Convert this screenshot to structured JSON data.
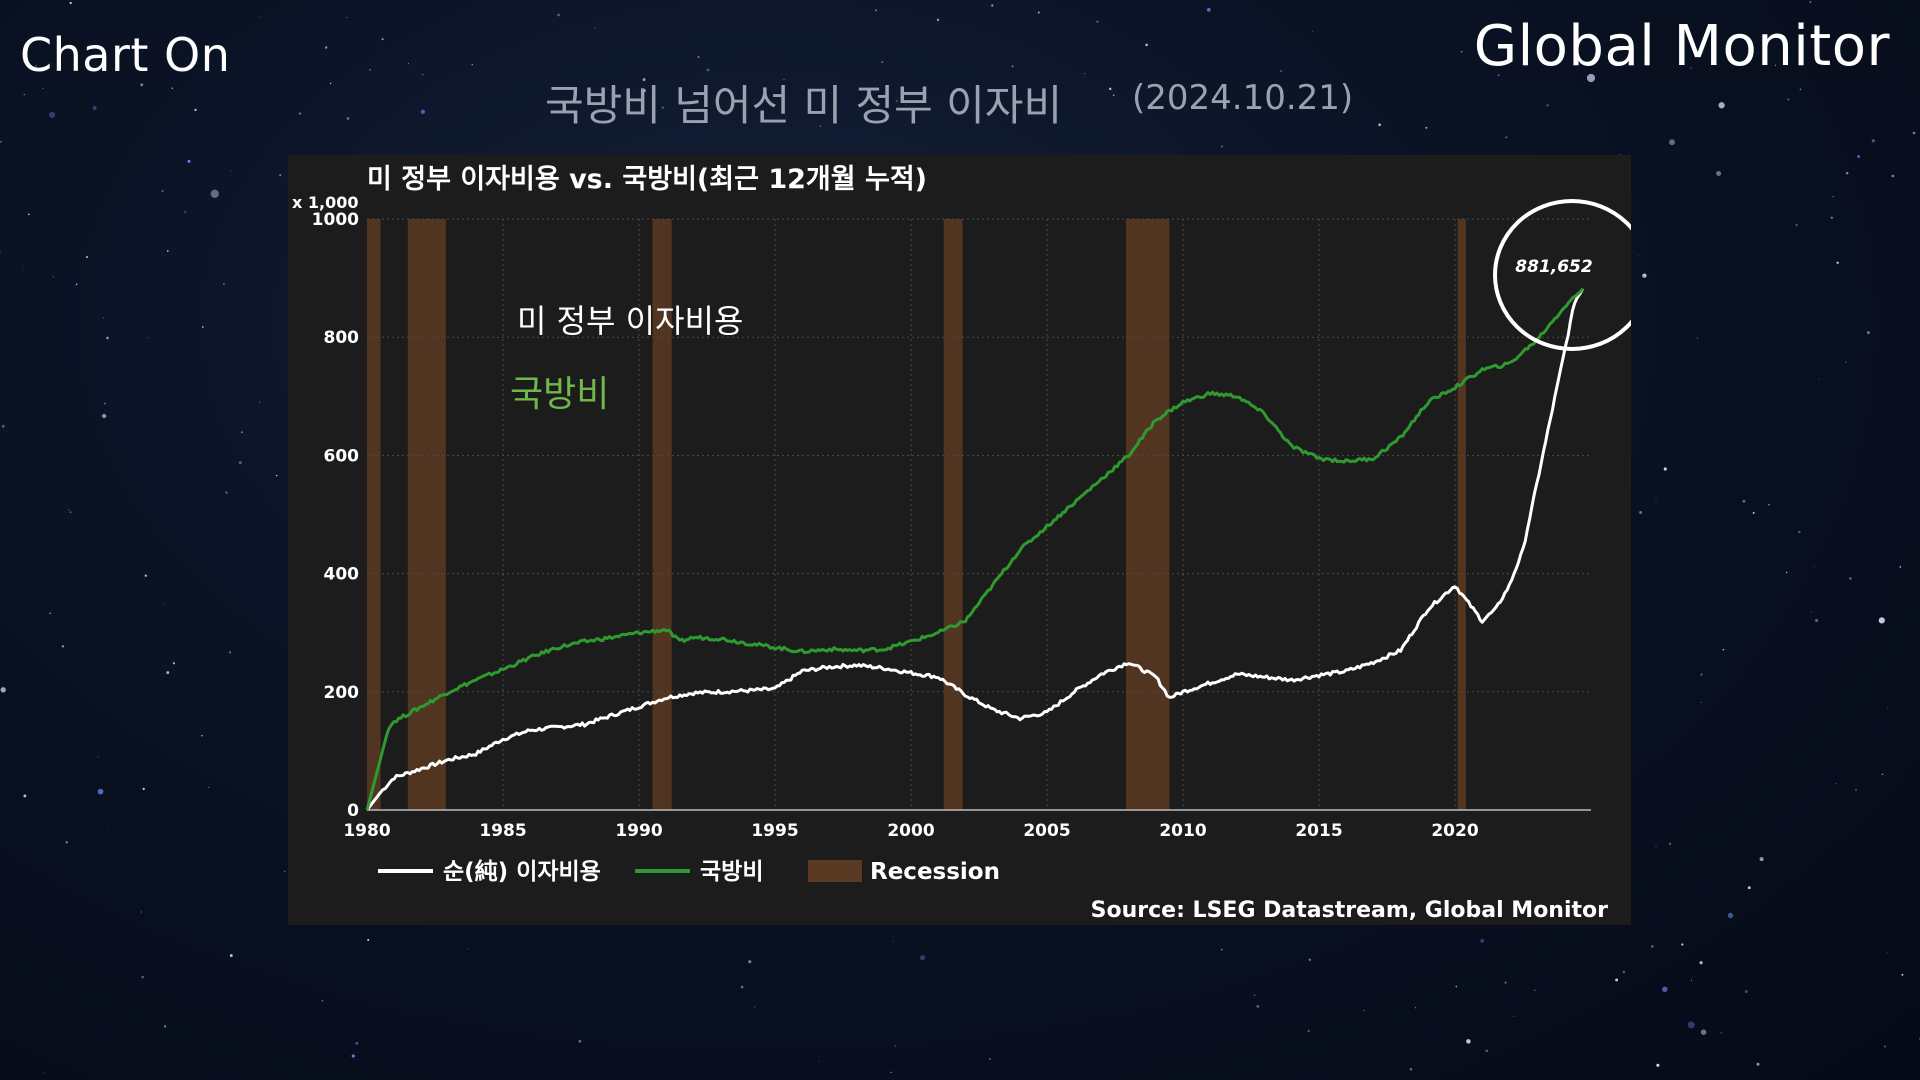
{
  "header": {
    "brand_left": "Chart On",
    "brand_right": "Global Monitor",
    "title": "국방비 넘어선 미 정부 이자비",
    "date": "(2024.10.21)"
  },
  "chart_data": {
    "type": "line",
    "title": "미 정부 이자비용 vs. 국방비(최근 12개월 누적)",
    "y_unit": "x 1,000",
    "xlim": [
      1980,
      2025
    ],
    "ylim": [
      0,
      1000
    ],
    "x_ticks": [
      1980,
      1985,
      1990,
      1995,
      2000,
      2005,
      2010,
      2015,
      2020
    ],
    "y_ticks": [
      0,
      200,
      400,
      600,
      800,
      1000
    ],
    "grid": true,
    "legend_position": "bottom-left",
    "series": [
      {
        "name": "순(純) 이자비용",
        "color": "#ffffff",
        "points": [
          [
            1980,
            0
          ],
          [
            1980.5,
            30
          ],
          [
            1981,
            55
          ],
          [
            1982,
            70
          ],
          [
            1983,
            85
          ],
          [
            1984,
            95
          ],
          [
            1985,
            120
          ],
          [
            1986,
            135
          ],
          [
            1987,
            140
          ],
          [
            1988,
            145
          ],
          [
            1989,
            160
          ],
          [
            1990,
            175
          ],
          [
            1991,
            190
          ],
          [
            1992,
            198
          ],
          [
            1993,
            200
          ],
          [
            1994,
            202
          ],
          [
            1995,
            205
          ],
          [
            1996,
            235
          ],
          [
            1997,
            242
          ],
          [
            1998,
            245
          ],
          [
            1999,
            240
          ],
          [
            2000,
            232
          ],
          [
            2001,
            225
          ],
          [
            2002,
            195
          ],
          [
            2003,
            170
          ],
          [
            2004,
            155
          ],
          [
            2005,
            165
          ],
          [
            2006,
            200
          ],
          [
            2007,
            230
          ],
          [
            2008,
            250
          ],
          [
            2009,
            225
          ],
          [
            2009.5,
            190
          ],
          [
            2010,
            200
          ],
          [
            2011,
            215
          ],
          [
            2012,
            230
          ],
          [
            2013,
            225
          ],
          [
            2014,
            220
          ],
          [
            2015,
            228
          ],
          [
            2016,
            235
          ],
          [
            2017,
            250
          ],
          [
            2018,
            270
          ],
          [
            2019,
            340
          ],
          [
            2020,
            380
          ],
          [
            2020.5,
            350
          ],
          [
            2021,
            320
          ],
          [
            2021.5,
            340
          ],
          [
            2022,
            380
          ],
          [
            2022.5,
            440
          ],
          [
            2023,
            550
          ],
          [
            2023.5,
            660
          ],
          [
            2024,
            770
          ],
          [
            2024.4,
            860
          ],
          [
            2024.7,
            882
          ]
        ]
      },
      {
        "name": "국방비",
        "color": "#2f9a2f",
        "points": [
          [
            1980,
            0
          ],
          [
            1980.8,
            140
          ],
          [
            1981,
            150
          ],
          [
            1982,
            175
          ],
          [
            1983,
            200
          ],
          [
            1984,
            220
          ],
          [
            1985,
            238
          ],
          [
            1986,
            258
          ],
          [
            1987,
            275
          ],
          [
            1988,
            285
          ],
          [
            1989,
            292
          ],
          [
            1990,
            300
          ],
          [
            1991,
            305
          ],
          [
            1991.5,
            285
          ],
          [
            1992,
            292
          ],
          [
            1993,
            290
          ],
          [
            1994,
            282
          ],
          [
            1995,
            275
          ],
          [
            1996,
            268
          ],
          [
            1997,
            272
          ],
          [
            1998,
            270
          ],
          [
            1999,
            272
          ],
          [
            2000,
            285
          ],
          [
            2001,
            300
          ],
          [
            2002,
            320
          ],
          [
            2003,
            380
          ],
          [
            2004,
            440
          ],
          [
            2005,
            480
          ],
          [
            2006,
            520
          ],
          [
            2007,
            560
          ],
          [
            2008,
            600
          ],
          [
            2009,
            660
          ],
          [
            2010,
            690
          ],
          [
            2011,
            705
          ],
          [
            2012,
            700
          ],
          [
            2013,
            670
          ],
          [
            2014,
            615
          ],
          [
            2015,
            595
          ],
          [
            2016,
            590
          ],
          [
            2017,
            595
          ],
          [
            2018,
            630
          ],
          [
            2019,
            690
          ],
          [
            2020,
            715
          ],
          [
            2021,
            745
          ],
          [
            2022,
            755
          ],
          [
            2023,
            795
          ],
          [
            2024,
            850
          ],
          [
            2024.7,
            882
          ]
        ]
      }
    ],
    "recessions": [
      [
        1980.0,
        1980.5
      ],
      [
        1981.5,
        1982.9
      ],
      [
        1990.5,
        1991.2
      ],
      [
        2001.2,
        2001.9
      ],
      [
        2007.9,
        2009.5
      ],
      [
        2020.1,
        2020.4
      ]
    ],
    "legend": {
      "items": [
        "순(純) 이자비용",
        "국방비",
        "Recession"
      ]
    },
    "annotations": {
      "interest_label": "미 정부 이자비용",
      "defense_label": "국방비",
      "peak_value": "881,652",
      "source": "Source: LSEG Datastream, Global Monitor"
    },
    "colors": {
      "interest": "#ffffff",
      "defense": "#2f9a2f",
      "defense_label": "#6fb84a",
      "recession": "#5a3a22"
    }
  }
}
